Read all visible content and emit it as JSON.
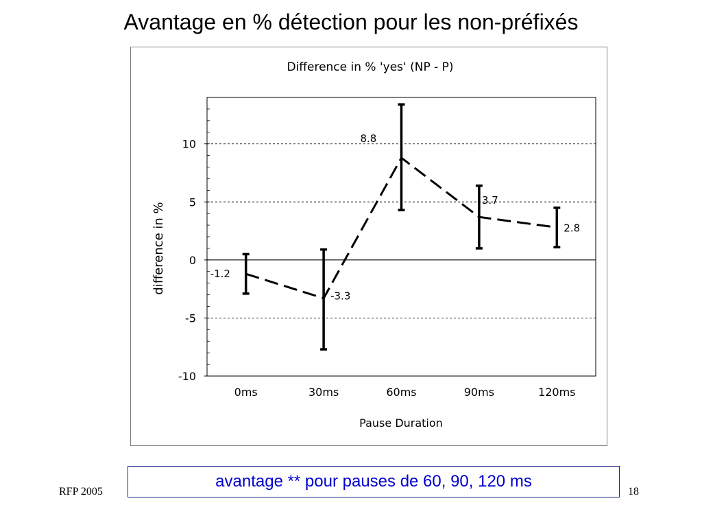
{
  "slide": {
    "title": "Avantage en % détection pour les non-préfixés",
    "callout": "avantage ** pour pauses de 60, 90, 120 ms",
    "footer_left": "RFP 2005",
    "page_number": "18"
  },
  "chart_data": {
    "type": "line",
    "title": "Difference in % 'yes' (NP - P)",
    "xlabel": "Pause Duration",
    "ylabel": "difference in %",
    "categories": [
      "0ms",
      "30ms",
      "60ms",
      "90ms",
      "120ms"
    ],
    "series": [
      {
        "values": [
          -1.2,
          -3.3,
          8.8,
          3.7,
          2.8
        ],
        "data_labels": [
          "-1.2",
          "-3.3",
          "8.8",
          "3.7",
          "2.8"
        ],
        "error_low": [
          -2.9,
          -7.7,
          4.3,
          1.0,
          1.1
        ],
        "error_high": [
          0.5,
          0.9,
          13.4,
          6.4,
          4.5
        ],
        "line_style": "dashed",
        "color": "#000000"
      }
    ],
    "ylim": [
      -10,
      14
    ],
    "yticks": [
      -10,
      -5,
      0,
      5,
      10
    ],
    "ytick_labels": [
      "-10",
      "-5",
      "0",
      "5",
      "10"
    ],
    "gridlines": [
      -5,
      5,
      10
    ],
    "grid": true,
    "grid_style": "dotted",
    "zero_line": true
  }
}
